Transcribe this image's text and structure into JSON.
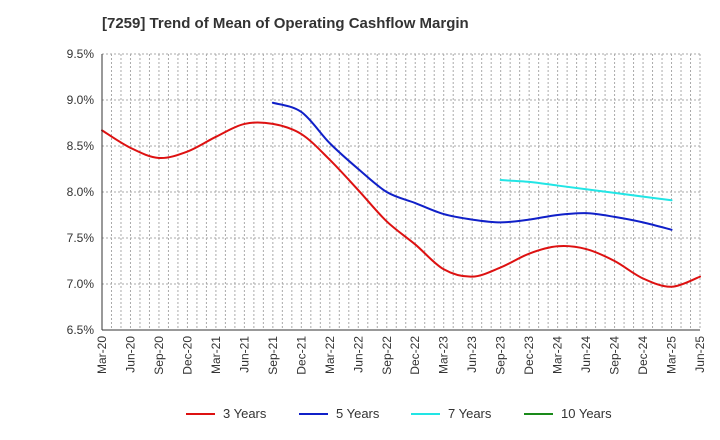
{
  "chart_data": {
    "type": "line",
    "title": "[7259]  Trend of Mean of Operating Cashflow Margin",
    "xlabel": "",
    "ylabel": "",
    "x_ticks": [
      "Mar-20",
      "Jun-20",
      "Sep-20",
      "Dec-20",
      "Mar-21",
      "Jun-21",
      "Sep-21",
      "Dec-21",
      "Mar-22",
      "Jun-22",
      "Sep-22",
      "Dec-22",
      "Mar-23",
      "Jun-23",
      "Sep-23",
      "Dec-23",
      "Mar-24",
      "Jun-24",
      "Sep-24",
      "Dec-24",
      "Mar-25",
      "Jun-25"
    ],
    "y_ticks": [
      "6.5%",
      "7.0%",
      "7.5%",
      "8.0%",
      "8.5%",
      "9.0%",
      "9.5%"
    ],
    "ylim": [
      6.5,
      9.5
    ],
    "grid": true,
    "legend_position": "bottom",
    "series": [
      {
        "name": "3 Years",
        "color": "#dd1111",
        "values": [
          8.67,
          8.48,
          8.37,
          8.44,
          8.6,
          8.74,
          8.74,
          8.63,
          8.35,
          8.02,
          7.68,
          7.43,
          7.16,
          7.08,
          7.18,
          7.33,
          7.41,
          7.38,
          7.25,
          7.06,
          6.97,
          7.08
        ]
      },
      {
        "name": "5 Years",
        "color": "#1020c8",
        "values": [
          null,
          null,
          null,
          null,
          null,
          null,
          8.97,
          8.87,
          8.53,
          8.25,
          8.0,
          7.88,
          7.76,
          7.7,
          7.67,
          7.7,
          7.75,
          7.77,
          7.73,
          7.67,
          7.59,
          null
        ]
      },
      {
        "name": "7 Years",
        "color": "#22e5e5",
        "values": [
          null,
          null,
          null,
          null,
          null,
          null,
          null,
          null,
          null,
          null,
          null,
          null,
          null,
          null,
          8.13,
          8.11,
          8.07,
          8.03,
          7.99,
          7.95,
          7.91,
          null
        ]
      },
      {
        "name": "10 Years",
        "color": "#1a8a1a",
        "values": [
          null,
          null,
          null,
          null,
          null,
          null,
          null,
          null,
          null,
          null,
          null,
          null,
          null,
          null,
          null,
          null,
          null,
          null,
          null,
          null,
          null,
          null
        ]
      }
    ]
  }
}
